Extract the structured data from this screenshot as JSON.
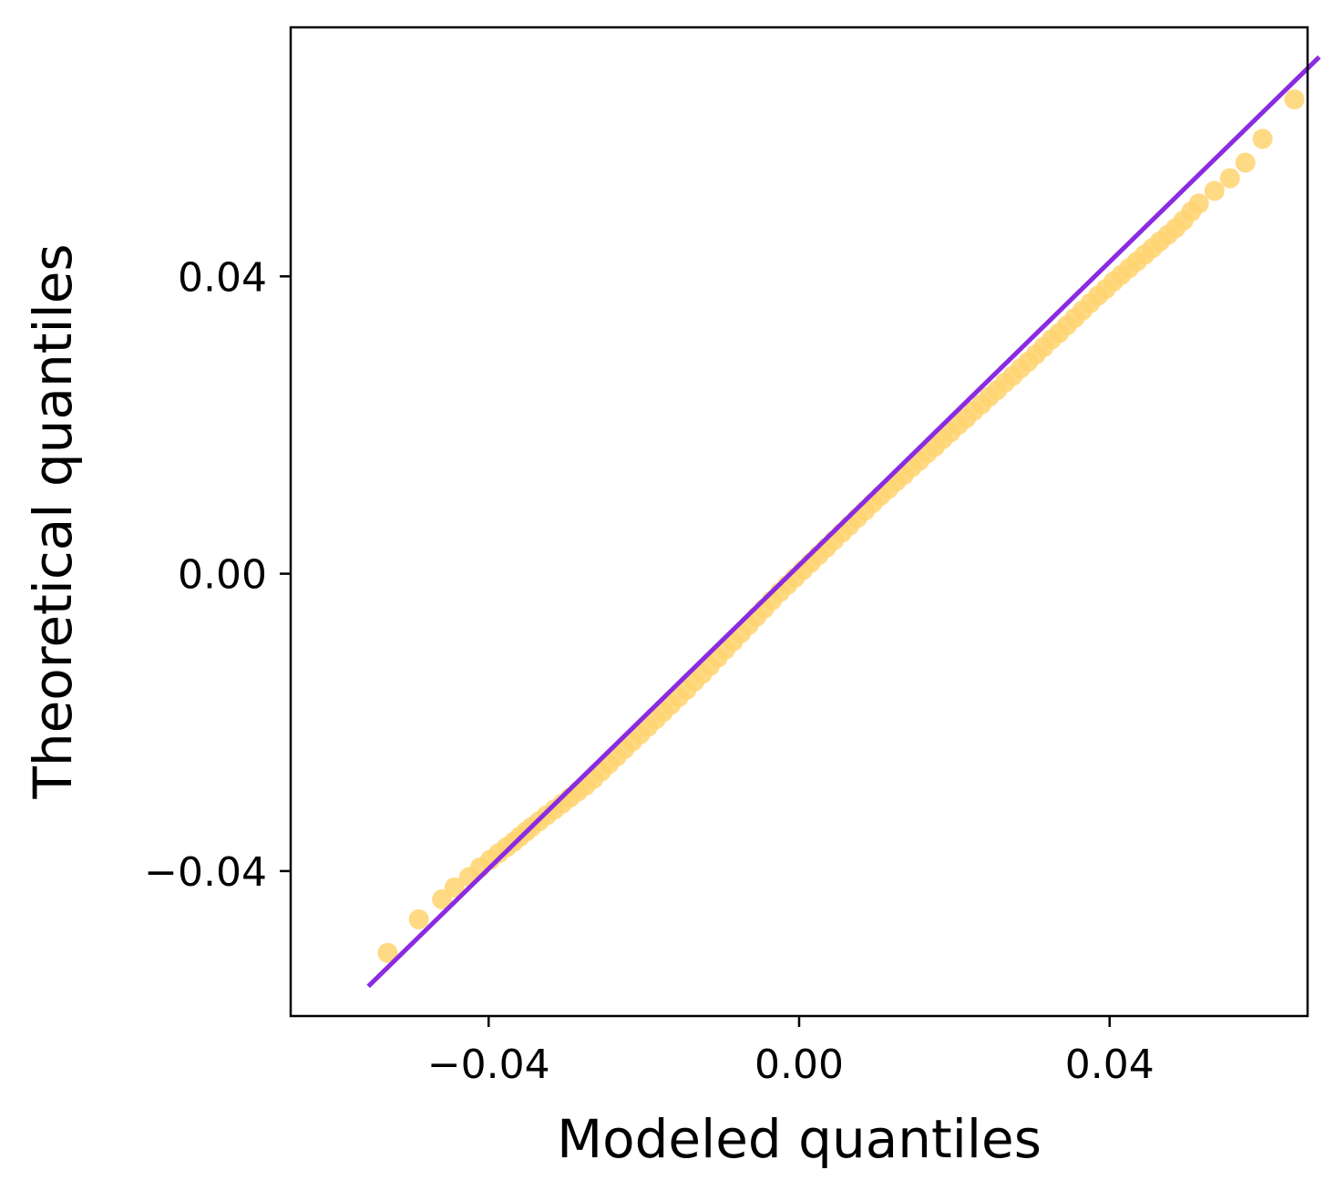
{
  "chart_data": {
    "type": "scatter",
    "title": "",
    "xlabel": "Modeled quantiles",
    "ylabel": "Theoretical quantiles",
    "xlim": [
      -0.0655,
      0.0655
    ],
    "ylim": [
      -0.0595,
      0.0735
    ],
    "xticks": [
      -0.04,
      0.0,
      0.04
    ],
    "xtick_labels": [
      "−0.04",
      "0.00",
      "0.04"
    ],
    "yticks": [
      -0.04,
      0.0,
      0.04
    ],
    "ytick_labels": [
      "−0.04",
      "0.00",
      "0.04"
    ],
    "grid": false,
    "legend": "none",
    "series": [
      {
        "kind": "scatter",
        "color": "#FFD470",
        "opacity": 0.85,
        "points": [
          [
            -0.053,
            -0.051
          ],
          [
            -0.049,
            -0.0465
          ],
          [
            -0.046,
            -0.0438
          ],
          [
            -0.0444,
            -0.0422
          ],
          [
            -0.0425,
            -0.0408
          ],
          [
            -0.0411,
            -0.0395
          ],
          [
            -0.0398,
            -0.0385
          ],
          [
            -0.0387,
            -0.0376
          ],
          [
            -0.0377,
            -0.0368
          ],
          [
            -0.0368,
            -0.0361
          ],
          [
            -0.036,
            -0.0354
          ],
          [
            -0.0352,
            -0.0347
          ],
          [
            -0.0345,
            -0.0341
          ],
          [
            -0.0335,
            -0.0333
          ],
          [
            -0.0325,
            -0.0325
          ],
          [
            -0.0315,
            -0.0317
          ],
          [
            -0.0305,
            -0.0309
          ],
          [
            -0.0295,
            -0.0301
          ],
          [
            -0.0285,
            -0.0293
          ],
          [
            -0.0275,
            -0.0285
          ],
          [
            -0.0265,
            -0.0276
          ],
          [
            -0.0255,
            -0.0266
          ],
          [
            -0.0245,
            -0.0256
          ],
          [
            -0.0235,
            -0.0246
          ],
          [
            -0.0225,
            -0.0236
          ],
          [
            -0.0215,
            -0.0226
          ],
          [
            -0.0205,
            -0.0216
          ],
          [
            -0.0195,
            -0.0206
          ],
          [
            -0.0185,
            -0.0196
          ],
          [
            -0.0175,
            -0.0186
          ],
          [
            -0.0165,
            -0.0176
          ],
          [
            -0.0155,
            -0.0166
          ],
          [
            -0.0145,
            -0.0156
          ],
          [
            -0.0135,
            -0.0145
          ],
          [
            -0.0125,
            -0.0135
          ],
          [
            -0.0115,
            -0.0124
          ],
          [
            -0.0105,
            -0.0113
          ],
          [
            -0.0095,
            -0.0102
          ],
          [
            -0.0085,
            -0.0091
          ],
          [
            -0.0075,
            -0.008
          ],
          [
            -0.0065,
            -0.0069
          ],
          [
            -0.0055,
            -0.0058
          ],
          [
            -0.0045,
            -0.0047
          ],
          [
            -0.0035,
            -0.0036
          ],
          [
            -0.0025,
            -0.0025
          ],
          [
            -0.0015,
            -0.0015
          ],
          [
            -0.0005,
            -0.0005
          ],
          [
            0.0005,
            0.0005
          ],
          [
            0.0015,
            0.0015
          ],
          [
            0.0025,
            0.0025
          ],
          [
            0.0035,
            0.0035
          ],
          [
            0.0045,
            0.0045
          ],
          [
            0.0055,
            0.0055
          ],
          [
            0.0065,
            0.0065
          ],
          [
            0.0075,
            0.0075
          ],
          [
            0.0085,
            0.0085
          ],
          [
            0.0095,
            0.0095
          ],
          [
            0.0105,
            0.0105
          ],
          [
            0.0115,
            0.0114
          ],
          [
            0.0125,
            0.0124
          ],
          [
            0.0135,
            0.0133
          ],
          [
            0.0145,
            0.0143
          ],
          [
            0.0155,
            0.0152
          ],
          [
            0.0165,
            0.0162
          ],
          [
            0.0175,
            0.0171
          ],
          [
            0.0185,
            0.0181
          ],
          [
            0.0195,
            0.019
          ],
          [
            0.0205,
            0.02
          ],
          [
            0.0215,
            0.0209
          ],
          [
            0.0225,
            0.0219
          ],
          [
            0.0235,
            0.0228
          ],
          [
            0.0245,
            0.0238
          ],
          [
            0.0255,
            0.0247
          ],
          [
            0.0265,
            0.0257
          ],
          [
            0.0275,
            0.0266
          ],
          [
            0.0285,
            0.0276
          ],
          [
            0.0295,
            0.0285
          ],
          [
            0.0305,
            0.0295
          ],
          [
            0.0315,
            0.0305
          ],
          [
            0.0325,
            0.0315
          ],
          [
            0.0335,
            0.0324
          ],
          [
            0.0345,
            0.0334
          ],
          [
            0.0355,
            0.0344
          ],
          [
            0.0365,
            0.0354
          ],
          [
            0.0375,
            0.0364
          ],
          [
            0.0385,
            0.0374
          ],
          [
            0.0395,
            0.0383
          ],
          [
            0.0405,
            0.0393
          ],
          [
            0.0415,
            0.0402
          ],
          [
            0.0425,
            0.0411
          ],
          [
            0.0435,
            0.042
          ],
          [
            0.0445,
            0.0429
          ],
          [
            0.0455,
            0.0438
          ],
          [
            0.0465,
            0.0447
          ],
          [
            0.0475,
            0.0456
          ],
          [
            0.0485,
            0.0465
          ],
          [
            0.0495,
            0.0475
          ],
          [
            0.0505,
            0.0487
          ],
          [
            0.0515,
            0.0498
          ],
          [
            0.0535,
            0.0515
          ],
          [
            0.0555,
            0.0532
          ],
          [
            0.0575,
            0.0553
          ],
          [
            0.0597,
            0.0585
          ],
          [
            0.0638,
            0.0638
          ]
        ]
      },
      {
        "kind": "line",
        "color": "#8A2BE2",
        "points": [
          [
            -0.0555,
            -0.0555
          ],
          [
            0.067,
            0.0695
          ]
        ]
      }
    ]
  }
}
